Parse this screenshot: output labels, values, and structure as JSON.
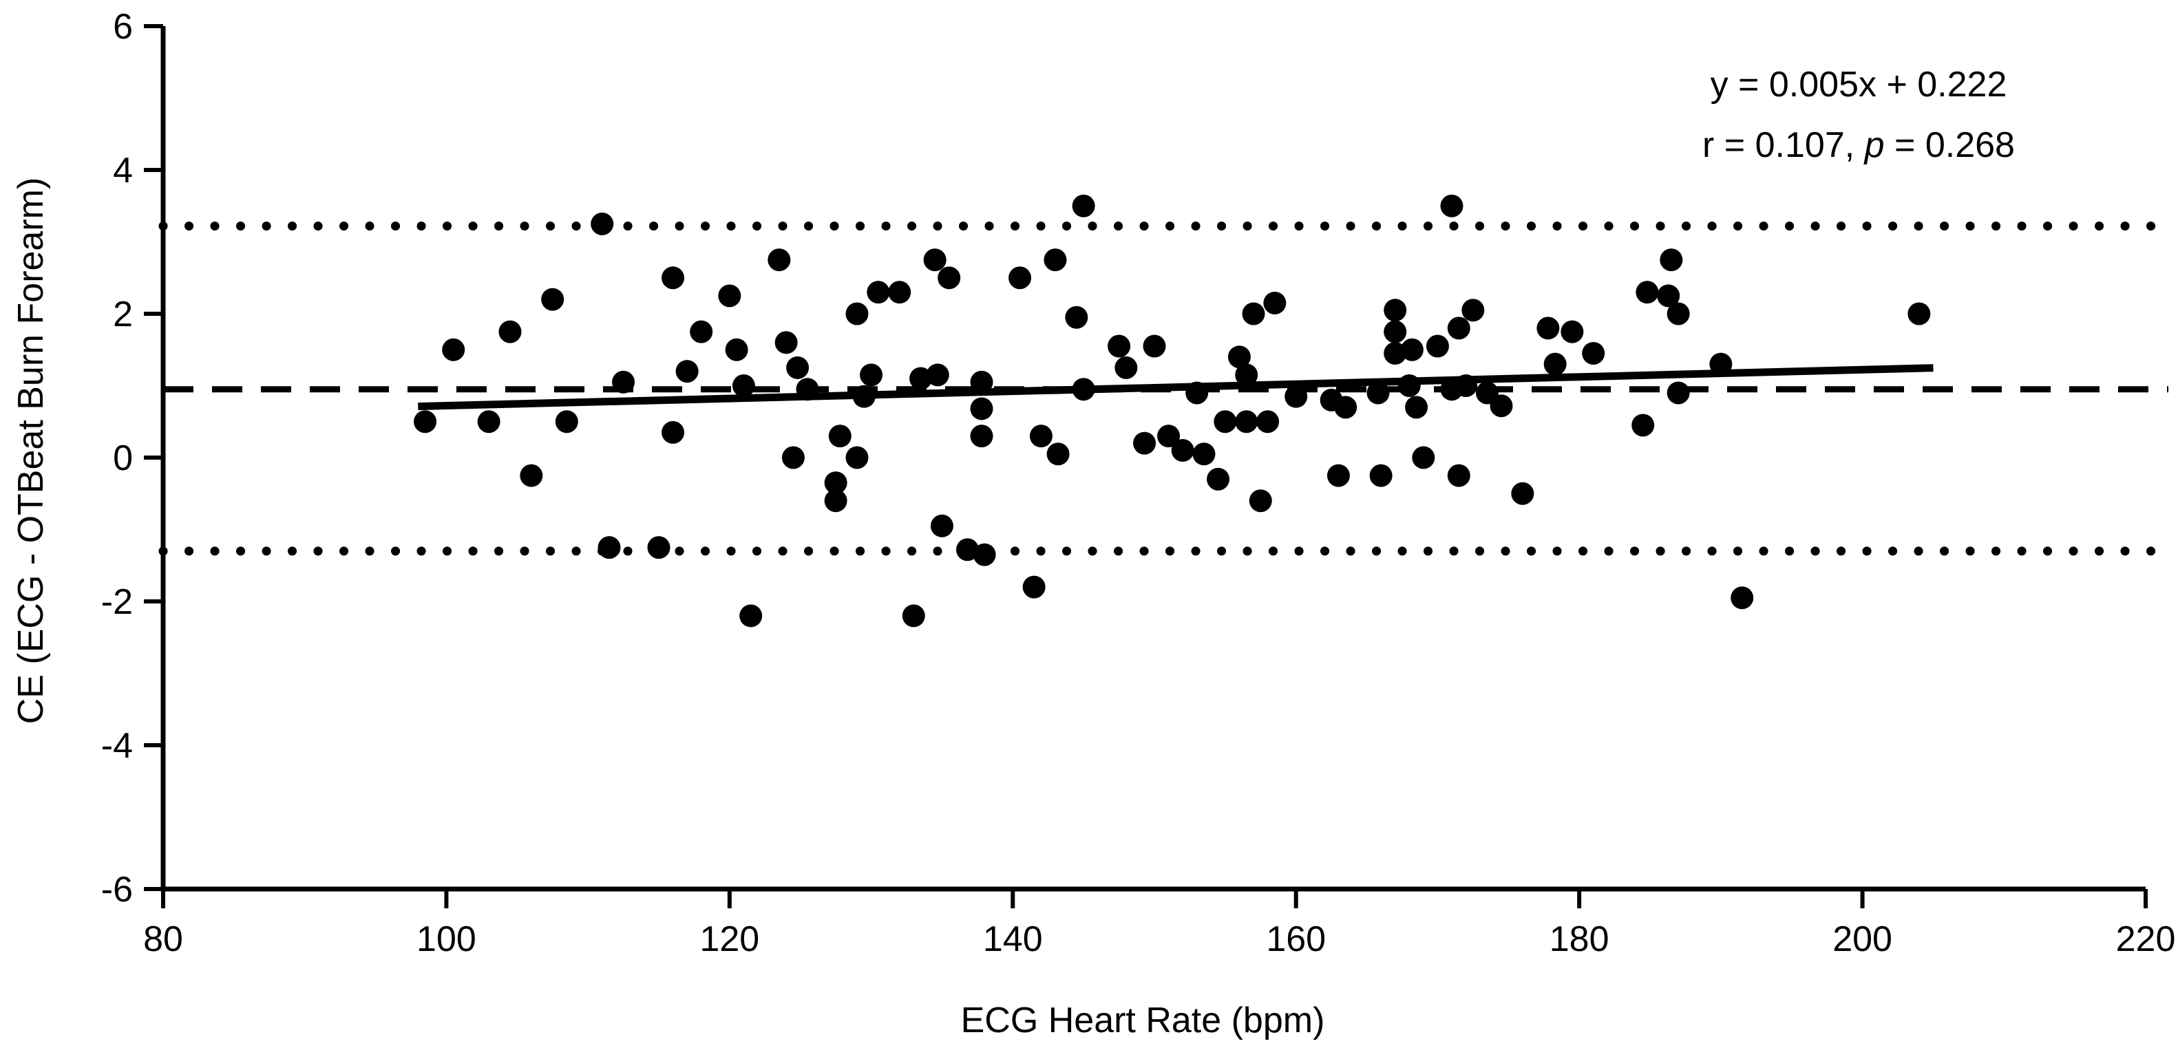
{
  "figure": {
    "background_color": "#ffffff",
    "ink_color": "#000000"
  },
  "chart_data": {
    "type": "scatter",
    "title": "",
    "xlabel": "ECG Heart Rate (bpm)",
    "ylabel": "CE (ECG - OTBeat Burn Forearm)",
    "xlim": [
      80,
      220
    ],
    "ylim": [
      -6,
      6
    ],
    "xticks": [
      80,
      100,
      120,
      140,
      160,
      180,
      200,
      220
    ],
    "yticks": [
      -6,
      -4,
      -2,
      0,
      2,
      4,
      6
    ],
    "grid": false,
    "legend_position": "none",
    "marker": {
      "shape": "circle",
      "color": "#000000",
      "radius_px": 16.5
    },
    "points": [
      [
        98.5,
        0.5
      ],
      [
        100.5,
        1.5
      ],
      [
        103,
        0.5
      ],
      [
        104.5,
        1.75
      ],
      [
        106,
        -0.25
      ],
      [
        107.5,
        2.2
      ],
      [
        108.5,
        0.5
      ],
      [
        111,
        3.25
      ],
      [
        111.5,
        -1.25
      ],
      [
        112.5,
        1.05
      ],
      [
        115,
        -1.25
      ],
      [
        116,
        2.5
      ],
      [
        116,
        0.35
      ],
      [
        117,
        1.2
      ],
      [
        118,
        1.75
      ],
      [
        120,
        2.25
      ],
      [
        120.5,
        1.5
      ],
      [
        121,
        1.0
      ],
      [
        121.5,
        -2.2
      ],
      [
        123.5,
        2.75
      ],
      [
        124,
        1.6
      ],
      [
        124.8,
        1.25
      ],
      [
        125.5,
        0.95
      ],
      [
        124.5,
        0.0
      ],
      [
        127.8,
        0.3
      ],
      [
        129,
        0.0
      ],
      [
        127.5,
        -0.35
      ],
      [
        127.5,
        -0.6
      ],
      [
        129,
        2.0
      ],
      [
        130.5,
        2.3
      ],
      [
        132,
        2.3
      ],
      [
        130,
        1.15
      ],
      [
        129.5,
        0.85
      ],
      [
        133.5,
        1.1
      ],
      [
        134.7,
        1.15
      ],
      [
        133,
        -2.2
      ],
      [
        134.5,
        2.75
      ],
      [
        135.5,
        2.5
      ],
      [
        135,
        -0.95
      ],
      [
        136.8,
        -1.28
      ],
      [
        138,
        -1.35
      ],
      [
        137.8,
        1.05
      ],
      [
        137.8,
        0.68
      ],
      [
        137.8,
        0.3
      ],
      [
        140.5,
        2.5
      ],
      [
        143,
        2.75
      ],
      [
        142,
        0.3
      ],
      [
        143.2,
        0.05
      ],
      [
        141.5,
        -1.8
      ],
      [
        144.5,
        1.95
      ],
      [
        145,
        3.5
      ],
      [
        145,
        0.95
      ],
      [
        147.5,
        1.55
      ],
      [
        150,
        1.55
      ],
      [
        148,
        1.25
      ],
      [
        149.3,
        0.2
      ],
      [
        151,
        0.3
      ],
      [
        152,
        0.1
      ],
      [
        153.5,
        0.05
      ],
      [
        154.5,
        -0.3
      ],
      [
        157.5,
        -0.6
      ],
      [
        153,
        0.9
      ],
      [
        155,
        0.5
      ],
      [
        156.5,
        0.5
      ],
      [
        158,
        0.5
      ],
      [
        156,
        1.4
      ],
      [
        156.5,
        1.15
      ],
      [
        157,
        2.0
      ],
      [
        158.5,
        2.15
      ],
      [
        160,
        0.85
      ],
      [
        162.5,
        0.8
      ],
      [
        163.5,
        0.7
      ],
      [
        163,
        -0.25
      ],
      [
        166,
        -0.25
      ],
      [
        167,
        2.05
      ],
      [
        167,
        1.75
      ],
      [
        167,
        1.45
      ],
      [
        168.2,
        1.5
      ],
      [
        165.8,
        0.9
      ],
      [
        168,
        1.0
      ],
      [
        168.5,
        0.7
      ],
      [
        169,
        0.0
      ],
      [
        170,
        1.55
      ],
      [
        171.5,
        1.8
      ],
      [
        172.5,
        2.05
      ],
      [
        171,
        3.5
      ],
      [
        171,
        0.95
      ],
      [
        172,
        1.0
      ],
      [
        173.5,
        0.9
      ],
      [
        174.5,
        0.72
      ],
      [
        171.5,
        -0.25
      ],
      [
        176,
        -0.5
      ],
      [
        177.8,
        1.8
      ],
      [
        179.5,
        1.75
      ],
      [
        181,
        1.45
      ],
      [
        178.3,
        1.3
      ],
      [
        184.5,
        0.45
      ],
      [
        184.8,
        2.3
      ],
      [
        186.3,
        2.25
      ],
      [
        187,
        2.0
      ],
      [
        186.5,
        2.75
      ],
      [
        187,
        0.9
      ],
      [
        190,
        1.3
      ],
      [
        191.5,
        -1.95
      ],
      [
        204,
        2.0
      ]
    ],
    "regression_line": {
      "slope": 0.005,
      "intercept": 0.222,
      "x_start": 98,
      "x_end": 205,
      "style": "solid"
    },
    "reference_lines": [
      {
        "name": "mean-bias",
        "value": 0.95,
        "style": "dashed"
      },
      {
        "name": "upper-loa",
        "value": 3.22,
        "style": "dotted"
      },
      {
        "name": "lower-loa",
        "value": -1.3,
        "style": "dotted"
      }
    ],
    "annotation": {
      "line1": "y = 0.005x + 0.222",
      "line2_prefix": "r = 0.107, ",
      "line2_italic": "p",
      "line2_suffix": " = 0.268"
    }
  }
}
